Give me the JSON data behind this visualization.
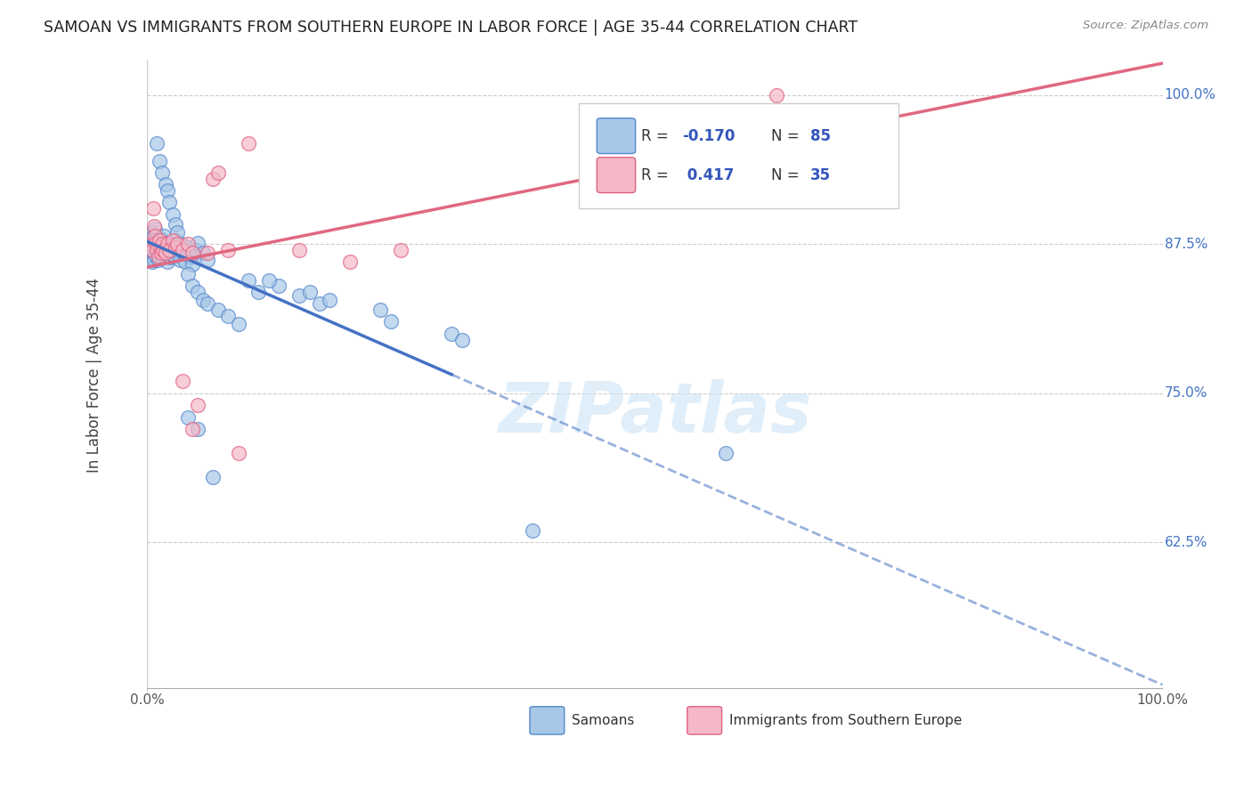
{
  "title": "SAMOAN VS IMMIGRANTS FROM SOUTHERN EUROPE IN LABOR FORCE | AGE 35-44 CORRELATION CHART",
  "source": "Source: ZipAtlas.com",
  "ylabel": "In Labor Force | Age 35-44",
  "xlim": [
    0.0,
    1.0
  ],
  "ylim": [
    0.5,
    1.03
  ],
  "yticks": [
    0.625,
    0.75,
    0.875,
    1.0
  ],
  "ytick_labels": [
    "62.5%",
    "75.0%",
    "87.5%",
    "100.0%"
  ],
  "blue_R": -0.17,
  "blue_N": 85,
  "pink_R": 0.417,
  "pink_N": 35,
  "blue_color": "#a8c8e8",
  "pink_color": "#f4b8c8",
  "blue_edge_color": "#5588cc",
  "pink_edge_color": "#e06080",
  "blue_line_color": "#4472c4",
  "pink_line_color": "#e06880",
  "legend_label_blue": "Samoans",
  "legend_label_pink": "Immigrants from Southern Europe",
  "watermark": "ZIPatlas",
  "background_color": "#ffffff",
  "blue_x": [
    0.003,
    0.004,
    0.004,
    0.005,
    0.005,
    0.005,
    0.006,
    0.006,
    0.007,
    0.007,
    0.008,
    0.008,
    0.009,
    0.009,
    0.01,
    0.01,
    0.011,
    0.011,
    0.012,
    0.012,
    0.013,
    0.013,
    0.014,
    0.015,
    0.015,
    0.016,
    0.017,
    0.018,
    0.019,
    0.02,
    0.021,
    0.022,
    0.023,
    0.024,
    0.025,
    0.026,
    0.027,
    0.028,
    0.03,
    0.032,
    0.034,
    0.036,
    0.038,
    0.04,
    0.042,
    0.045,
    0.048,
    0.05,
    0.055,
    0.06,
    0.01,
    0.012,
    0.015,
    0.018,
    0.02,
    0.022,
    0.025,
    0.028,
    0.03,
    0.035,
    0.04,
    0.045,
    0.05,
    0.055,
    0.06,
    0.07,
    0.08,
    0.09,
    0.1,
    0.11,
    0.13,
    0.15,
    0.17,
    0.23,
    0.24,
    0.12,
    0.16,
    0.18,
    0.3,
    0.31,
    0.04,
    0.05,
    0.065,
    0.57,
    0.38
  ],
  "blue_y": [
    0.875,
    0.88,
    0.87,
    0.885,
    0.878,
    0.86,
    0.882,
    0.875,
    0.87,
    0.862,
    0.888,
    0.875,
    0.872,
    0.865,
    0.88,
    0.875,
    0.87,
    0.862,
    0.878,
    0.87,
    0.875,
    0.88,
    0.872,
    0.865,
    0.878,
    0.87,
    0.882,
    0.875,
    0.868,
    0.86,
    0.876,
    0.87,
    0.864,
    0.872,
    0.866,
    0.87,
    0.865,
    0.878,
    0.87,
    0.862,
    0.875,
    0.868,
    0.86,
    0.872,
    0.865,
    0.858,
    0.87,
    0.876,
    0.868,
    0.862,
    0.96,
    0.945,
    0.935,
    0.925,
    0.92,
    0.91,
    0.9,
    0.892,
    0.885,
    0.87,
    0.85,
    0.84,
    0.835,
    0.828,
    0.825,
    0.82,
    0.815,
    0.808,
    0.845,
    0.835,
    0.84,
    0.832,
    0.825,
    0.82,
    0.81,
    0.845,
    0.835,
    0.828,
    0.8,
    0.795,
    0.73,
    0.72,
    0.68,
    0.7,
    0.635
  ],
  "pink_x": [
    0.004,
    0.005,
    0.006,
    0.007,
    0.008,
    0.009,
    0.01,
    0.011,
    0.012,
    0.013,
    0.014,
    0.015,
    0.016,
    0.018,
    0.02,
    0.022,
    0.025,
    0.028,
    0.03,
    0.035,
    0.04,
    0.045,
    0.05,
    0.06,
    0.065,
    0.07,
    0.08,
    0.09,
    0.1,
    0.15,
    0.2,
    0.25,
    0.045,
    0.035,
    0.62
  ],
  "pink_y": [
    0.875,
    0.87,
    0.905,
    0.89,
    0.882,
    0.876,
    0.87,
    0.865,
    0.878,
    0.872,
    0.868,
    0.875,
    0.87,
    0.868,
    0.875,
    0.87,
    0.878,
    0.872,
    0.875,
    0.87,
    0.875,
    0.868,
    0.74,
    0.868,
    0.93,
    0.935,
    0.87,
    0.7,
    0.96,
    0.87,
    0.86,
    0.87,
    0.72,
    0.76,
    1.0
  ]
}
